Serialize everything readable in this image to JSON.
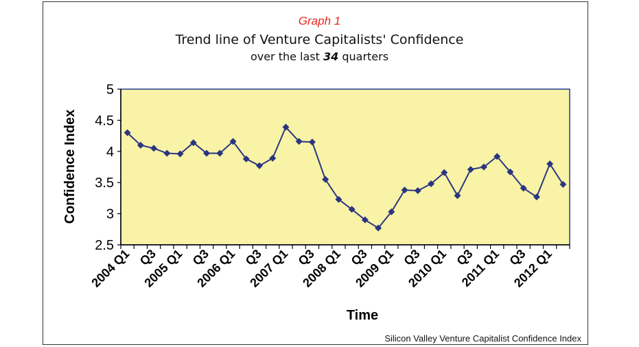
{
  "graph_label": "Graph 1",
  "title": "Trend line of Venture Capitalists' Confidence",
  "subtitle_prefix": "over the last ",
  "subtitle_number": "34",
  "subtitle_suffix": " quarters",
  "credit": "Silicon Valley Venture Capitalist Confidence Index",
  "colors": {
    "plot_background": "#f8f3a7",
    "plot_border": "#1f3a8f",
    "series": "#2b3580",
    "graph_label": "#e8261f"
  },
  "chart_data": {
    "type": "line",
    "xlabel": "Time",
    "ylabel": "Confidence Index",
    "ylim": [
      2.5,
      5
    ],
    "yticks": [
      "2.5",
      "3",
      "3.5",
      "4",
      "4.5",
      "5"
    ],
    "grid": false,
    "legend": "none",
    "xtick_labels": [
      "2004 Q1",
      "Q3",
      "2005 Q1",
      "Q3",
      "2006 Q1",
      "Q3",
      "2007 Q1",
      "Q3",
      "2008 Q1",
      "Q3",
      "2009 Q1",
      "Q3",
      "2010 Q1",
      "Q3",
      "2011 Q1",
      "Q3",
      "2012 Q1"
    ],
    "x": [
      "2004 Q1",
      "2004 Q2",
      "2004 Q3",
      "2004 Q4",
      "2005 Q1",
      "2005 Q2",
      "2005 Q3",
      "2005 Q4",
      "2006 Q1",
      "2006 Q2",
      "2006 Q3",
      "2006 Q4",
      "2007 Q1",
      "2007 Q2",
      "2007 Q3",
      "2007 Q4",
      "2008 Q1",
      "2008 Q2",
      "2008 Q3",
      "2008 Q4",
      "2009 Q1",
      "2009 Q2",
      "2009 Q3",
      "2009 Q4",
      "2010 Q1",
      "2010 Q2",
      "2010 Q3",
      "2010 Q4",
      "2011 Q1",
      "2011 Q2",
      "2011 Q3",
      "2011 Q4",
      "2012 Q1",
      "2012 Q2"
    ],
    "series": [
      {
        "values": [
          4.3,
          4.1,
          4.05,
          3.97,
          3.96,
          4.14,
          3.97,
          3.97,
          4.16,
          3.88,
          3.77,
          3.89,
          4.39,
          4.16,
          4.15,
          3.55,
          3.23,
          3.07,
          2.9,
          2.77,
          3.03,
          3.38,
          3.37,
          3.48,
          3.66,
          3.29,
          3.71,
          3.75,
          3.92,
          3.67,
          3.41,
          3.27,
          3.8,
          3.47
        ]
      }
    ]
  }
}
